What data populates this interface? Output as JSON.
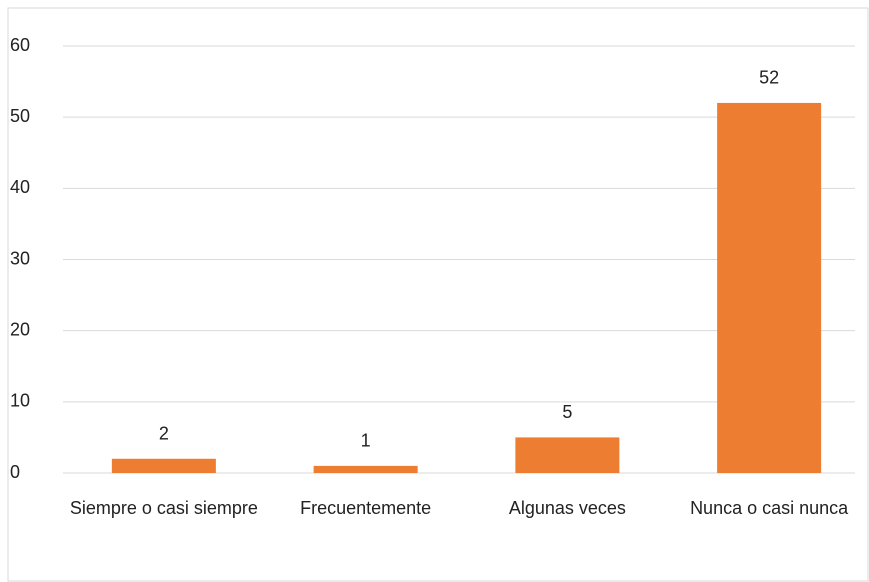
{
  "chart_data": {
    "type": "bar",
    "categories": [
      "Siempre o casi siempre",
      "Frecuentemente",
      "Algunas veces",
      "Nunca o casi nunca"
    ],
    "values": [
      2,
      1,
      5,
      52
    ],
    "color": "#ed7d31",
    "ylim": [
      0,
      60
    ],
    "yticks": [
      0,
      10,
      20,
      30,
      40,
      50,
      60
    ],
    "grid": true,
    "data_labels": true
  }
}
